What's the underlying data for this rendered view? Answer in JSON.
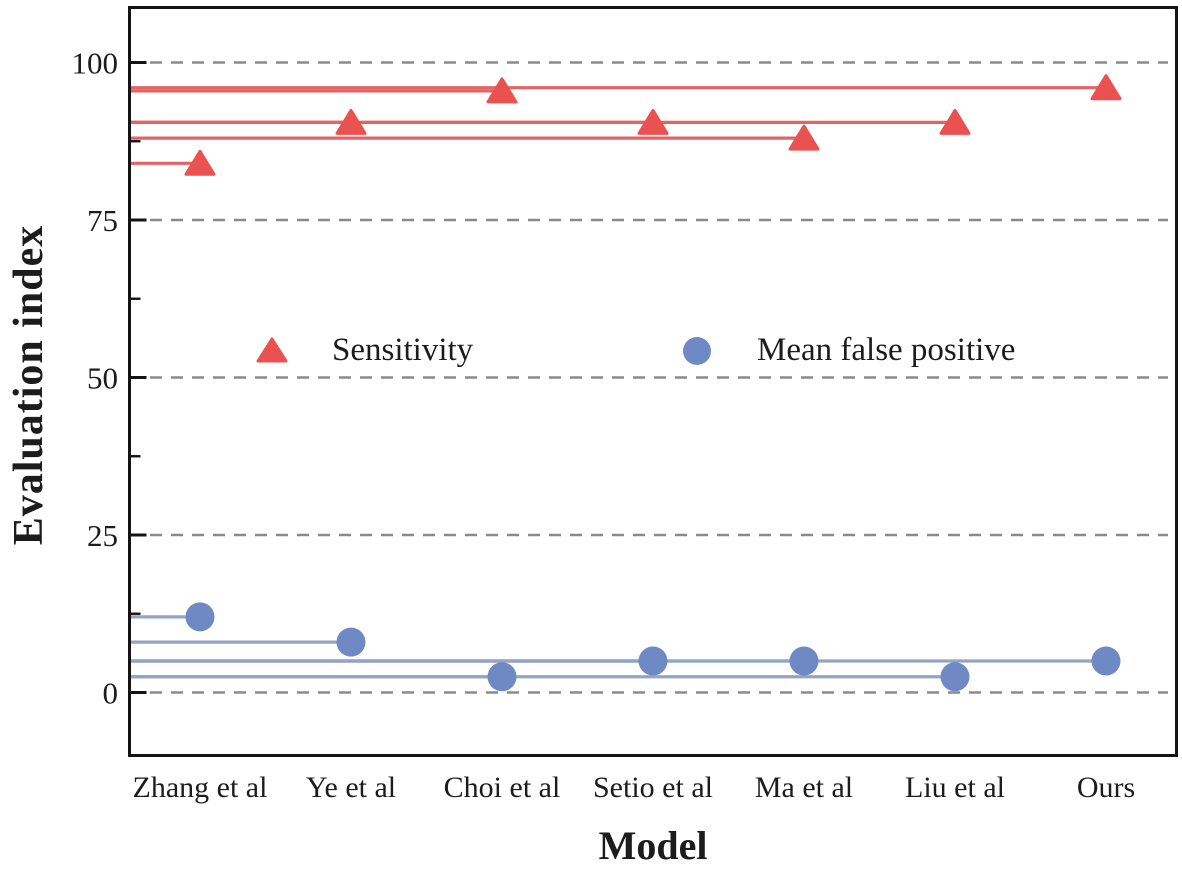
{
  "chart_data": {
    "type": "scatter",
    "subtype": "lollipop (horizontal stems from y-axis to each marker)",
    "title": "",
    "xlabel": "Model",
    "ylabel": "Evaluation index",
    "categories": [
      "Zhang et al",
      "Ye et al",
      "Choi et al",
      "Setio et al",
      "Ma et al",
      "Liu et al",
      "Ours"
    ],
    "series": [
      {
        "name": "Sensitivity",
        "marker": "triangle",
        "marker_color": "#ea5251",
        "line_color": "#e46465",
        "values": [
          84,
          90.5,
          95.5,
          90.5,
          88,
          90.5,
          96
        ]
      },
      {
        "name": "Mean false positive",
        "marker": "circle",
        "marker_color": "#6f89c4",
        "line_color": "#95a4c3",
        "values": [
          12,
          8,
          2.5,
          5,
          5,
          2.5,
          5
        ]
      }
    ],
    "ylim": [
      -10,
      109
    ],
    "yticks": [
      0,
      25,
      50,
      75,
      100
    ],
    "minor_yticks": [
      12.5,
      37.5,
      62.5,
      87.5
    ],
    "grid": "horizontal dashed gridlines at major y ticks",
    "legend_position": "inside plot, above 50 gridline",
    "colors": {
      "grid": "#8a8a8a",
      "axis": "#141414",
      "text": "#1c1c1c",
      "background": "#ffffff"
    }
  }
}
